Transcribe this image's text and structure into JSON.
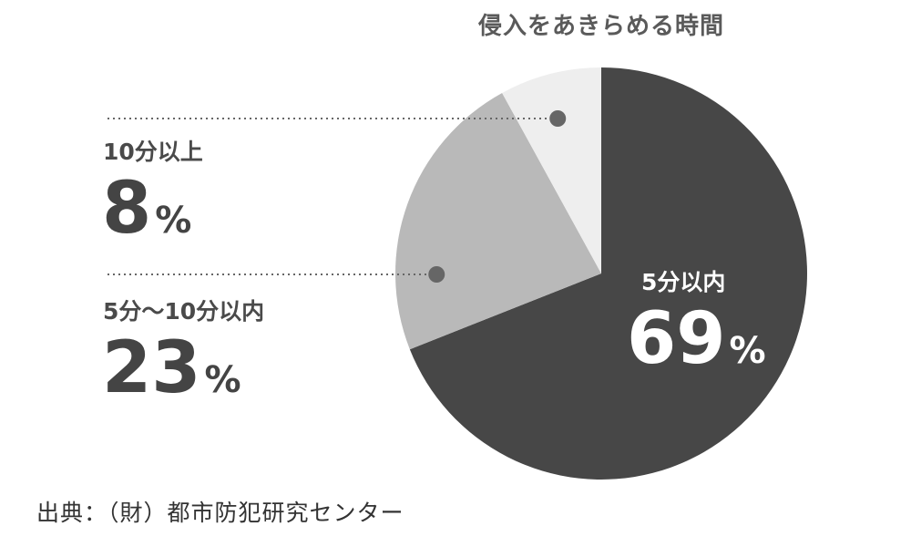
{
  "chart_data": {
    "type": "pie",
    "title": "侵入をあきらめる時間",
    "unit": "%",
    "slices": [
      {
        "label": "5分以内",
        "value": 69,
        "color": "#474747"
      },
      {
        "label": "5分～10分以内",
        "value": 23,
        "color": "#b9b9b9"
      },
      {
        "label": "10分以上",
        "value": 8,
        "color": "#eeeeee"
      }
    ],
    "legend": "callout-left"
  },
  "source": "出典：（財）都市防犯研究センター"
}
